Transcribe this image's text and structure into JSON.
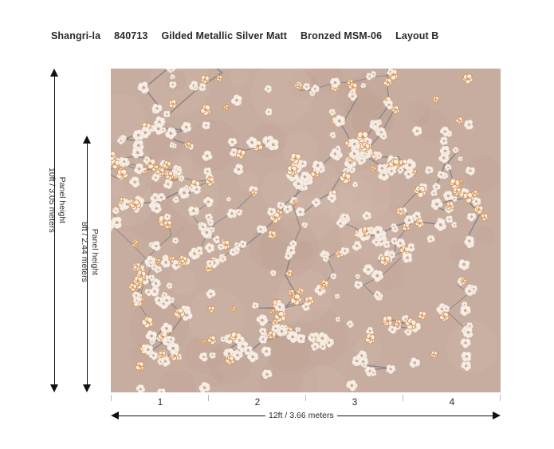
{
  "header": {
    "collection": "Shangri-la",
    "code": "840713",
    "finish": "Gilded Metallic Silver Matt",
    "color": "Bronzed MSM-06",
    "layout": "Layout B"
  },
  "dimensions": {
    "outer_height_label_1": "Panel height",
    "outer_height_label_2": "10ft / 3.05 meters",
    "inner_height_label_1": "Panel height",
    "inner_height_label_2": "8ft / 2.44 meters",
    "width_label": "12ft  / 3.66 meters"
  },
  "panels": [
    "1",
    "2",
    "3",
    "4"
  ],
  "colors": {
    "background": "#c6ada0",
    "blossom": "#f7efe7",
    "blossom_accent": "#d99a5c",
    "branch": "#7d7f86"
  }
}
